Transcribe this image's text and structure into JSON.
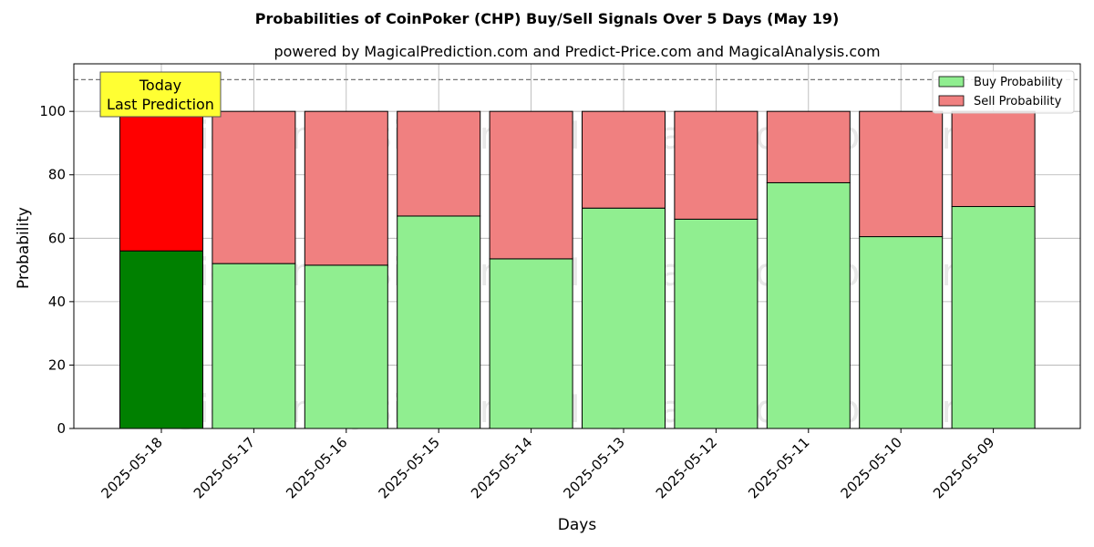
{
  "chart_data": {
    "type": "bar",
    "title": "Probabilities of CoinPoker (CHP) Buy/Sell Signals Over 5 Days (May 19)",
    "subtitle": "powered by MagicalPrediction.com and Predict-Price.com and MagicalAnalysis.com",
    "xlabel": "Days",
    "ylabel": "Probability",
    "ylim": [
      0,
      115
    ],
    "yticks": [
      0,
      20,
      40,
      60,
      80,
      100
    ],
    "grid": true,
    "stacked": true,
    "legend_position": "top-right",
    "reference_line": 110,
    "categories": [
      "2025-05-18",
      "2025-05-17",
      "2025-05-16",
      "2025-05-15",
      "2025-05-14",
      "2025-05-13",
      "2025-05-12",
      "2025-05-11",
      "2025-05-10",
      "2025-05-09"
    ],
    "series": [
      {
        "name": "Buy Probability",
        "color": "#90ee90",
        "highlight_color": "#008000",
        "values": [
          56,
          52,
          51.5,
          67,
          53.5,
          69.5,
          66,
          77.5,
          60.5,
          70
        ]
      },
      {
        "name": "Sell Probability",
        "color": "#f08080",
        "highlight_color": "#ff0000",
        "values": [
          44,
          48,
          48.5,
          33,
          46.5,
          30.5,
          34,
          22.5,
          39.5,
          30
        ]
      }
    ],
    "annotation": {
      "lines": [
        "Today",
        "Last Prediction"
      ],
      "background": "#ffff33"
    },
    "watermarks": [
      "MagicalAnalysis.com",
      "MagicalPrediction.com"
    ]
  }
}
